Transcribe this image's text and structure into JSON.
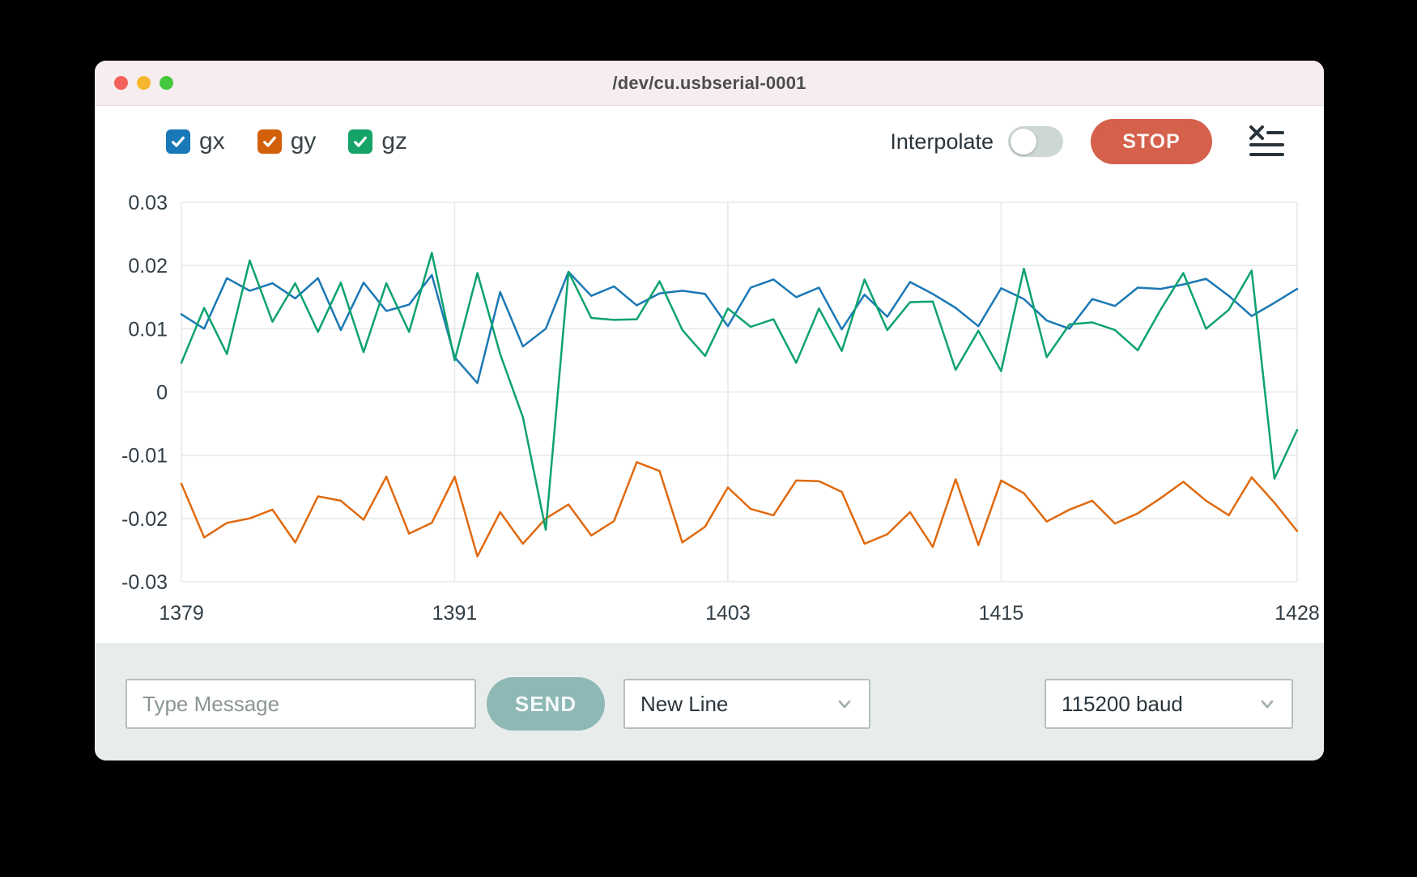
{
  "window": {
    "title": "/dev/cu.usbserial-0001"
  },
  "titlebar_lights": {
    "close_color": "#f2615b",
    "minimize_color": "#f7b62e",
    "zoom_color": "#43c73c"
  },
  "legend": {
    "items": [
      {
        "label": "gx",
        "checked": true,
        "color": "#1878b8"
      },
      {
        "label": "gy",
        "checked": true,
        "color": "#d2600b"
      },
      {
        "label": "gz",
        "checked": true,
        "color": "#16a368"
      }
    ]
  },
  "toolbar": {
    "interpolate_label": "Interpolate",
    "interpolate_on": false,
    "stop_label": "STOP",
    "stop_color": "#d5604c"
  },
  "chart_data": {
    "type": "line",
    "title": "",
    "xlabel": "",
    "ylabel": "",
    "grid": true,
    "legend_position": "top-left",
    "xlim": [
      1379,
      1428
    ],
    "ylim": [
      -0.03,
      0.03
    ],
    "x_start": 1379,
    "x_step": 1,
    "xticks": [
      {
        "v": 1379,
        "label": "1379"
      },
      {
        "v": 1391,
        "label": "1391"
      },
      {
        "v": 1403,
        "label": "1403"
      },
      {
        "v": 1415,
        "label": "1415"
      },
      {
        "v": 1428,
        "label": "1428"
      }
    ],
    "yticks": [
      {
        "v": 0.03,
        "label": "0.03"
      },
      {
        "v": 0.02,
        "label": "0.02"
      },
      {
        "v": 0.01,
        "label": "0.01"
      },
      {
        "v": 0,
        "label": "0"
      },
      {
        "v": -0.01,
        "label": "-0.01"
      },
      {
        "v": -0.02,
        "label": "-0.02"
      },
      {
        "v": -0.03,
        "label": "-0.03"
      }
    ],
    "series": [
      {
        "name": "gx",
        "color": "#1b78b5",
        "values": [
          0.0123,
          0.01,
          0.018,
          0.016,
          0.0172,
          0.0148,
          0.018,
          0.0098,
          0.0173,
          0.0128,
          0.0138,
          0.0185,
          0.0055,
          0.0014,
          0.0158,
          0.0072,
          0.01,
          0.019,
          0.0152,
          0.0167,
          0.0137,
          0.0156,
          0.016,
          0.0155,
          0.0104,
          0.0165,
          0.0178,
          0.015,
          0.0165,
          0.0099,
          0.0154,
          0.0119,
          0.0174,
          0.0155,
          0.0133,
          0.0104,
          0.0164,
          0.0147,
          0.0113,
          0.01,
          0.0147,
          0.0136,
          0.0165,
          0.0163,
          0.017,
          0.0179,
          0.0152,
          0.012,
          0.0141,
          0.0163
        ]
      },
      {
        "name": "gy",
        "color": "#e0690e",
        "values": [
          -0.0145,
          -0.023,
          -0.0207,
          -0.02,
          -0.0186,
          -0.0238,
          -0.0165,
          -0.0172,
          -0.0202,
          -0.0134,
          -0.0224,
          -0.0207,
          -0.0134,
          -0.026,
          -0.019,
          -0.024,
          -0.02,
          -0.0178,
          -0.0227,
          -0.0204,
          -0.0111,
          -0.0125,
          -0.0238,
          -0.0213,
          -0.0151,
          -0.0185,
          -0.0195,
          -0.014,
          -0.0141,
          -0.0158,
          -0.024,
          -0.0225,
          -0.019,
          -0.0245,
          -0.0138,
          -0.0242,
          -0.014,
          -0.016,
          -0.0205,
          -0.0186,
          -0.0172,
          -0.0208,
          -0.0192,
          -0.0168,
          -0.0142,
          -0.0172,
          -0.0195,
          -0.0135,
          -0.0175,
          -0.022
        ]
      },
      {
        "name": "gz",
        "color": "#0da26f",
        "values": [
          0.0046,
          0.0133,
          0.006,
          0.0208,
          0.0111,
          0.0172,
          0.0095,
          0.0173,
          0.0063,
          0.0172,
          0.0095,
          0.022,
          0.005,
          0.0188,
          0.006,
          -0.004,
          -0.0218,
          0.019,
          0.0117,
          0.0114,
          0.0115,
          0.0175,
          0.0098,
          0.0057,
          0.0132,
          0.0103,
          0.0115,
          0.0046,
          0.0132,
          0.0065,
          0.0178,
          0.0098,
          0.0142,
          0.0143,
          0.0035,
          0.0097,
          0.0033,
          0.0195,
          0.0055,
          0.0107,
          0.011,
          0.0098,
          0.0066,
          0.013,
          0.0188,
          0.01,
          0.013,
          0.0192,
          -0.0137,
          -0.006
        ]
      }
    ]
  },
  "message_bar": {
    "input_placeholder": "Type Message",
    "input_value": "",
    "send_label": "SEND",
    "send_color": "#8eb8b6",
    "line_ending_selected": "New Line",
    "baud_selected": "115200 baud"
  }
}
